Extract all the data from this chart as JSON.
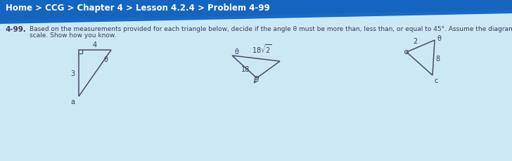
{
  "bg_top_color": "#1565c0",
  "bg_bottom_color": "#cde8f5",
  "breadcrumb": "Home > CCG > Chapter 4 > Lesson 4.2.4 > Problem 4-99",
  "line_color": "#4a4a6a",
  "text_color": "#3a3a5a",
  "prob_num": "4-99.",
  "prob_line1": "Based on the measurements provided for each triangle below, decide if the angle θ must be more than, less than, or equal to 45°. Assume the diagram is not drawn to",
  "prob_line2": "scale. Show how you know.",
  "tri_a_label": "a",
  "tri_b_label": "b",
  "tri_c_label": "c"
}
